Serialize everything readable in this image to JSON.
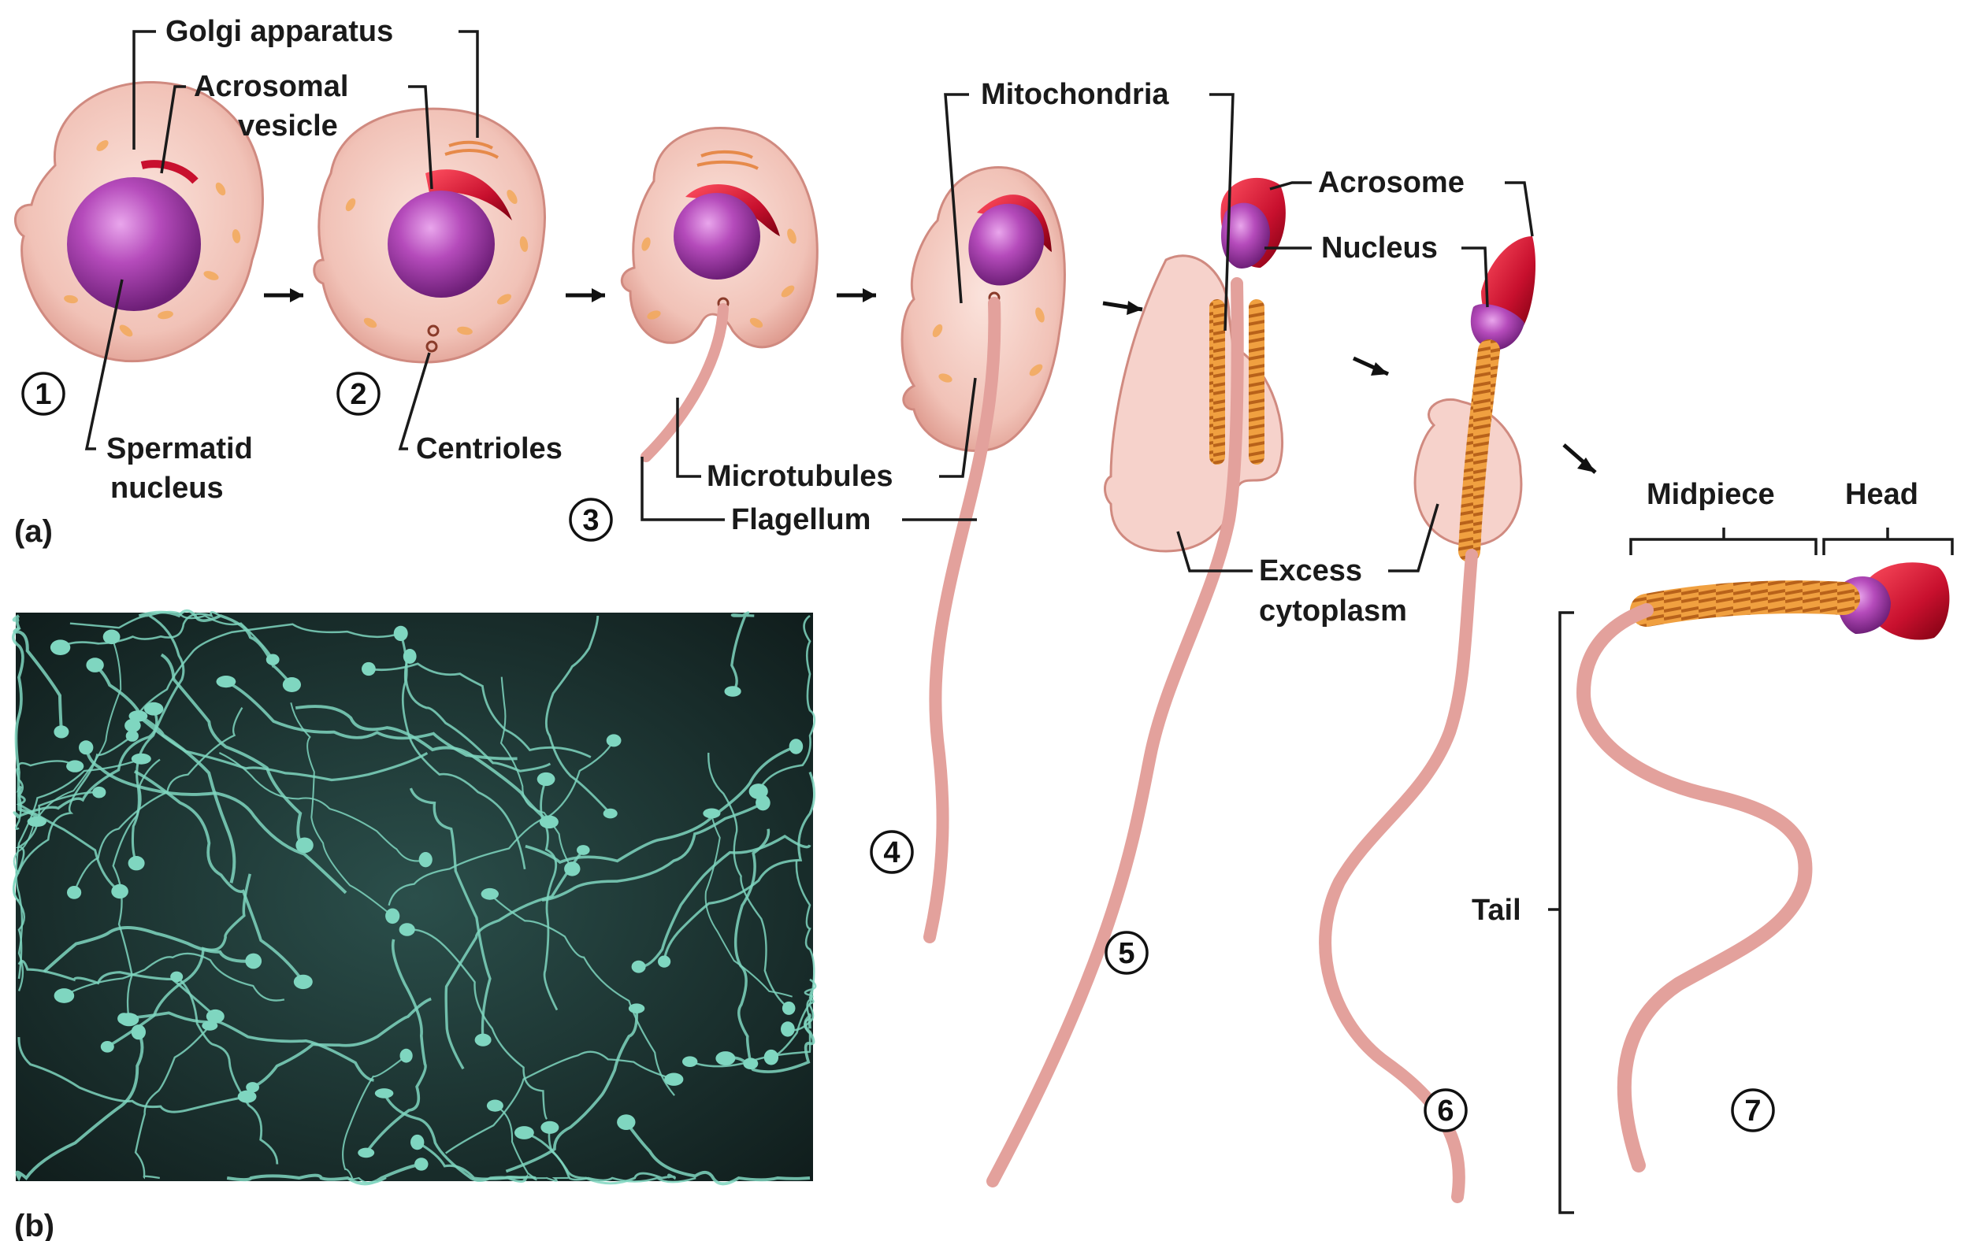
{
  "panels": {
    "a": "(a)",
    "b": "(b)"
  },
  "labels": {
    "golgi": "Golgi apparatus",
    "acrosomal_1": "Acrosomal",
    "acrosomal_2": "vesicle",
    "spermatid_1": "Spermatid",
    "spermatid_2": "nucleus",
    "centrioles": "Centrioles",
    "mitochondria": "Mitochondria",
    "microtubules": "Microtubules",
    "flagellum": "Flagellum",
    "acrosome": "Acrosome",
    "nucleus": "Nucleus",
    "excess_1": "Excess",
    "excess_2": "cytoplasm",
    "midpiece": "Midpiece",
    "head": "Head",
    "tail": "Tail"
  },
  "stages": [
    "1",
    "2",
    "3",
    "4",
    "5",
    "6",
    "7"
  ],
  "colors": {
    "cell_body": "#f2c4bc",
    "cell_edge": "#d99a90",
    "nucleus": "#a23da8",
    "acrosome": "#c8102e",
    "mitochondria": "#f0a040",
    "tail": "#e8a8a4",
    "micrograph_bg": "#1e3a38",
    "sperm_micrograph": "#7fd6c0"
  }
}
